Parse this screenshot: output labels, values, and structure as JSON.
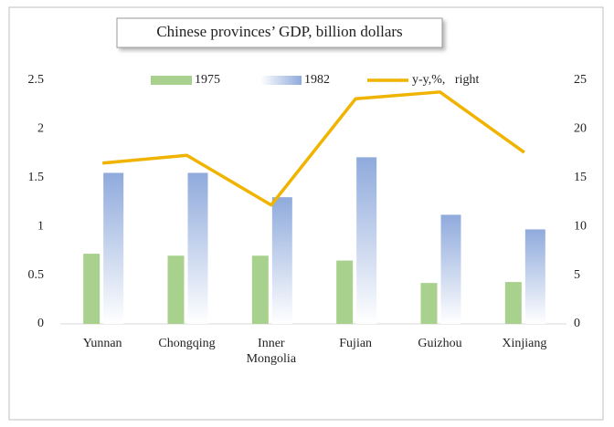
{
  "chart_data": {
    "type": "bar",
    "title": "Chinese provinces’ GDP, billion dollars",
    "categories": [
      "Yunnan",
      "Chongqing",
      "Inner Mongolia",
      "Fujian",
      "Guizhou",
      "Xinjiang"
    ],
    "series": [
      {
        "name": "1975",
        "color": "#a9d18e",
        "values": [
          0.72,
          0.7,
          0.7,
          0.65,
          0.42,
          0.43
        ]
      },
      {
        "name": "1982",
        "color": "#8faadc",
        "values": [
          1.55,
          1.55,
          1.3,
          1.71,
          1.12,
          0.97
        ]
      },
      {
        "name": "y-y,%,   right",
        "color": "#f0b400",
        "type": "line",
        "axis": "y2",
        "values": [
          16.5,
          17.3,
          12.2,
          23.1,
          23.8,
          17.6
        ]
      }
    ],
    "ylim": [
      0,
      2.5
    ],
    "yticks": [
      0,
      0.5,
      1,
      1.5,
      2,
      2.5
    ],
    "y2lim": [
      0,
      25
    ],
    "y2ticks": [
      0,
      5,
      10,
      15,
      20,
      25
    ],
    "legend": "top"
  }
}
